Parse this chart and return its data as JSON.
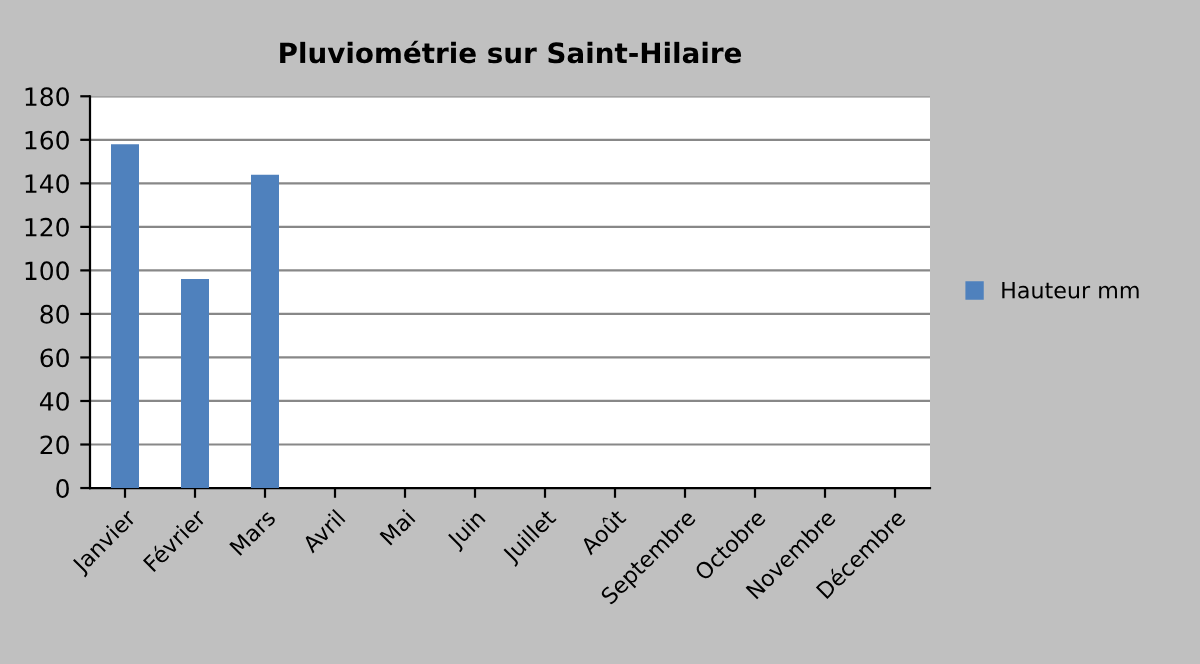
{
  "chart_data": {
    "type": "bar",
    "title": "Pluviométrie sur Saint-Hilaire",
    "categories": [
      "Janvier",
      "Février",
      "Mars",
      "Avril",
      "Mai",
      "Juin",
      "Juillet",
      "Août",
      "Septembre",
      "Octobre",
      "Novembre",
      "Décembre"
    ],
    "series": [
      {
        "name": "Hauteur mm",
        "color": "#4f81bd",
        "values": [
          158,
          96,
          144,
          null,
          null,
          null,
          null,
          null,
          null,
          null,
          null,
          null
        ]
      }
    ],
    "ylim": [
      0,
      180
    ],
    "yticks": [
      0,
      20,
      40,
      60,
      80,
      100,
      120,
      140,
      160,
      180
    ],
    "grid": "y",
    "legend": "right"
  }
}
